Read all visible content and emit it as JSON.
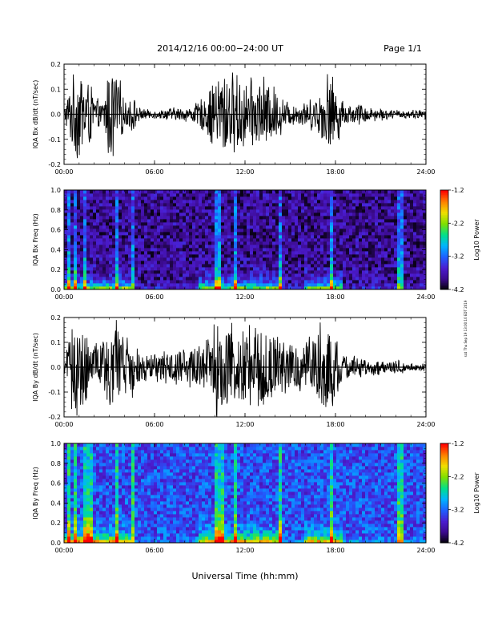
{
  "header": {
    "title": "2014/12/16  00:00−24:00 UT",
    "page": "Page 1/1"
  },
  "footer": {
    "xlabel": "Universal Time (hh:mm)",
    "stamp": "scd Thu Sep 19 13:00:10 EDT 2019"
  },
  "colors": {
    "waveform": "#000000",
    "colormap": [
      "#000000",
      "#3b0a8c",
      "#4b1cd0",
      "#1f5fff",
      "#00b4ff",
      "#00e08a",
      "#7fe000",
      "#f0e000",
      "#ff8000",
      "#ff0000"
    ]
  },
  "chart_data": [
    {
      "type": "line",
      "title": "",
      "ylabel": "IQA Bx dB/dt (nT/sec)",
      "xlabel": "",
      "xlim": [
        0,
        24
      ],
      "ylim": [
        -0.2,
        0.2
      ],
      "xticks": [
        "00:00",
        "06:00",
        "12:00",
        "18:00",
        "24:00"
      ],
      "yticks": [
        "-0.2",
        "-0.1",
        "0.0",
        "0.1",
        "0.2"
      ],
      "grid": false,
      "series": [
        {
          "hours": [
            0,
            0.5,
            1,
            1.5,
            2,
            2.5,
            3,
            3.5,
            4,
            4.5,
            5,
            5.5,
            6,
            6.5,
            7,
            7.5,
            8,
            8.5,
            9,
            9.5,
            10,
            10.5,
            11,
            11.5,
            12,
            12.5,
            13,
            13.5,
            14,
            14.5,
            15,
            15.5,
            16,
            16.5,
            17,
            17.5,
            18,
            18.5,
            19,
            19.5,
            20,
            20.5,
            21,
            21.5,
            22,
            22.5,
            23,
            23.5,
            24
          ],
          "amplitude": [
            0.03,
            0.15,
            0.22,
            0.18,
            0.09,
            0.04,
            0.22,
            0.22,
            0.05,
            0.09,
            0.03,
            0.02,
            0.02,
            0.02,
            0.03,
            0.03,
            0.03,
            0.04,
            0.06,
            0.1,
            0.16,
            0.22,
            0.18,
            0.18,
            0.16,
            0.15,
            0.18,
            0.15,
            0.12,
            0.08,
            0.05,
            0.05,
            0.06,
            0.07,
            0.1,
            0.2,
            0.15,
            0.06,
            0.04,
            0.05,
            0.04,
            0.03,
            0.03,
            0.02,
            0.02,
            0.02,
            0.02,
            0.02,
            0.02
          ]
        }
      ]
    },
    {
      "type": "heatmap",
      "title": "",
      "ylabel": "IQA Bx Freq (Hz)",
      "xlabel": "",
      "xlim": [
        0,
        24
      ],
      "ylim": [
        0,
        1
      ],
      "xticks": [
        "00:00",
        "06:00",
        "12:00",
        "18:00",
        "24:00"
      ],
      "yticks": [
        "0.0",
        "0.2",
        "0.4",
        "0.6",
        "0.8",
        "1.0"
      ],
      "colorbar": {
        "label": "Log10 Power",
        "range": [
          -4.2,
          -1.2
        ],
        "ticks": [
          "-1.2",
          "-2.2",
          "-3.2",
          "-4.2"
        ]
      },
      "background_level": -3.8,
      "low_frequency_enhancement_hours": [
        [
          0,
          4.5
        ],
        [
          9,
          14.5
        ],
        [
          16,
          18.5
        ]
      ],
      "vertical_streak_hours": [
        0.3,
        0.8,
        1.3,
        3.5,
        4.5,
        10.2,
        11.4,
        14.4,
        17.8,
        22.3
      ]
    },
    {
      "type": "line",
      "title": "",
      "ylabel": "IQA By dB/dt (nT/sec)",
      "xlabel": "",
      "xlim": [
        0,
        24
      ],
      "ylim": [
        -0.2,
        0.2
      ],
      "xticks": [
        "00:00",
        "06:00",
        "12:00",
        "18:00",
        "24:00"
      ],
      "yticks": [
        "-0.2",
        "-0.1",
        "0.0",
        "0.1",
        "0.2"
      ],
      "grid": false,
      "series": [
        {
          "hours": [
            0,
            0.5,
            1,
            1.5,
            2,
            2.5,
            3,
            3.5,
            4,
            4.5,
            5,
            5.5,
            6,
            6.5,
            7,
            7.5,
            8,
            8.5,
            9,
            9.5,
            10,
            10.5,
            11,
            11.5,
            12,
            12.5,
            13,
            13.5,
            14,
            14.5,
            15,
            15.5,
            16,
            16.5,
            17,
            17.5,
            18,
            18.5,
            19,
            19.5,
            20,
            20.5,
            21,
            21.5,
            22,
            22.5,
            23,
            23.5,
            24
          ],
          "amplitude": [
            0.06,
            0.18,
            0.22,
            0.18,
            0.12,
            0.1,
            0.22,
            0.22,
            0.12,
            0.14,
            0.08,
            0.06,
            0.06,
            0.07,
            0.08,
            0.09,
            0.1,
            0.09,
            0.1,
            0.14,
            0.2,
            0.22,
            0.22,
            0.22,
            0.2,
            0.18,
            0.2,
            0.18,
            0.15,
            0.12,
            0.1,
            0.12,
            0.12,
            0.16,
            0.2,
            0.22,
            0.16,
            0.06,
            0.05,
            0.05,
            0.04,
            0.04,
            0.03,
            0.03,
            0.03,
            0.03,
            0.02,
            0.02,
            0.02
          ]
        }
      ]
    },
    {
      "type": "heatmap",
      "title": "",
      "ylabel": "IQA By Freq (Hz)",
      "xlabel": "Universal Time (hh:mm)",
      "xlim": [
        0,
        24
      ],
      "ylim": [
        0,
        1
      ],
      "xticks": [
        "00:00",
        "06:00",
        "12:00",
        "18:00",
        "24:00"
      ],
      "yticks": [
        "0.0",
        "0.2",
        "0.4",
        "0.6",
        "0.8",
        "1.0"
      ],
      "colorbar": {
        "label": "Log10 Power",
        "range": [
          -4.2,
          -1.2
        ],
        "ticks": [
          "-1.2",
          "-2.2",
          "-3.2",
          "-4.2"
        ]
      },
      "background_level": -3.3,
      "low_frequency_enhancement_hours": [
        [
          0,
          4.5
        ],
        [
          9,
          14.5
        ],
        [
          16,
          18.5
        ]
      ],
      "vertical_streak_hours": [
        0.3,
        0.8,
        1.3,
        1.7,
        3.5,
        4.5,
        10.2,
        10.5,
        11.4,
        14.4,
        17.8,
        22.3
      ]
    }
  ]
}
